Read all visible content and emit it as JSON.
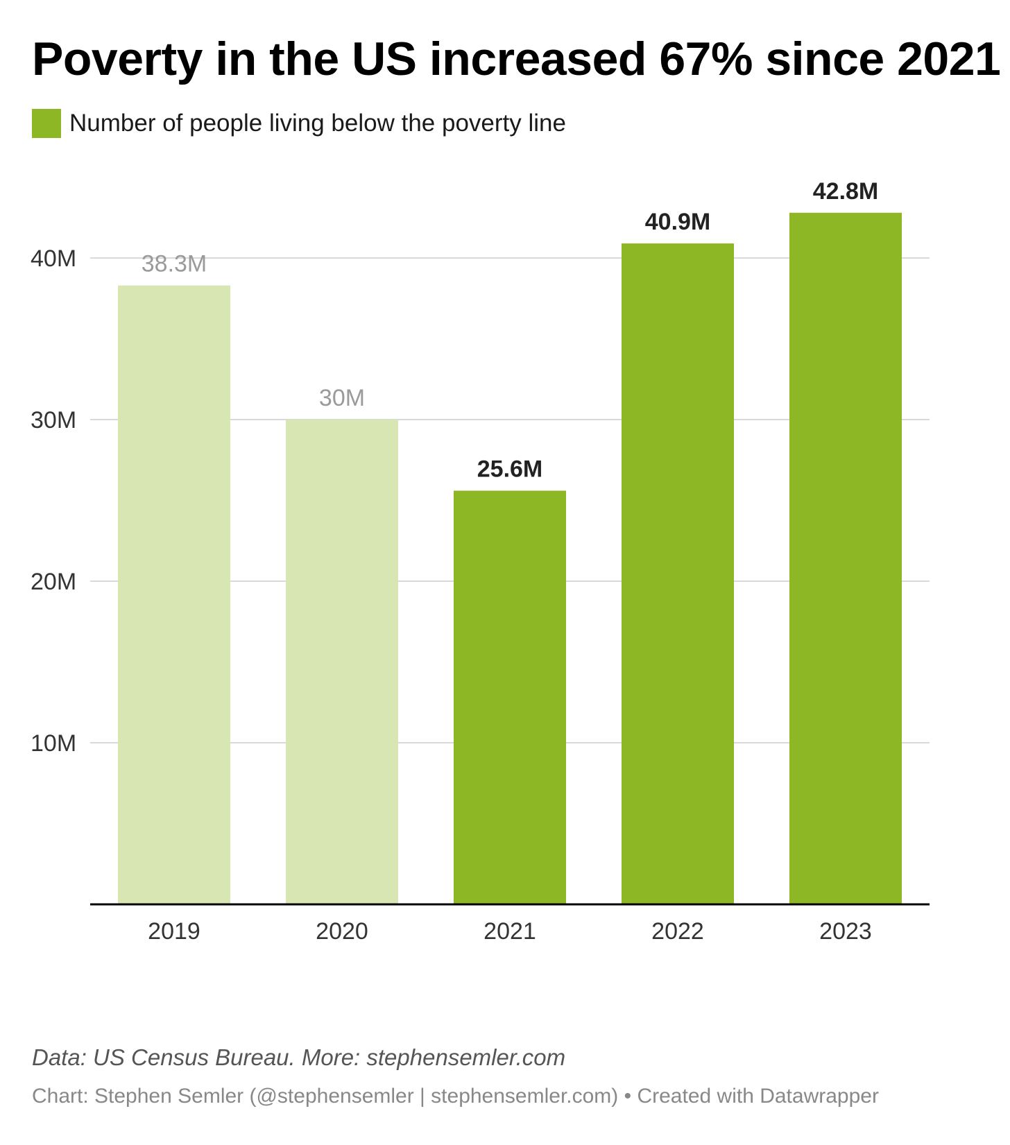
{
  "chart_data": {
    "type": "bar",
    "title": "Poverty in the US increased 67% since 2021",
    "legend": [
      "Number of people living below the poverty line"
    ],
    "legend_placement": "top-left",
    "categories": [
      "2019",
      "2020",
      "2021",
      "2022",
      "2023"
    ],
    "series": [
      {
        "name": "Number of people living below the poverty line",
        "values": [
          38.3,
          30,
          25.6,
          40.9,
          42.8
        ]
      }
    ],
    "value_labels": [
      "38.3M",
      "30M",
      "25.6M",
      "40.9M",
      "42.8M"
    ],
    "highlighted": [
      false,
      false,
      true,
      true,
      true
    ],
    "yticks": [
      10,
      20,
      30,
      40
    ],
    "ytick_labels": [
      "10M",
      "20M",
      "30M",
      "40M"
    ],
    "ylim": [
      0,
      45
    ],
    "xlabel": "",
    "ylabel": "",
    "grid": true
  },
  "colors": {
    "highlight": "#8db724",
    "muted": "#d7e6b3",
    "label_highlight": "#222222",
    "label_muted": "#9a9a9a",
    "gridline": "#d9d9d9",
    "axis": "#000000",
    "tick_label": "#333333"
  },
  "footer": {
    "source": "Data: US Census Bureau. More: stephensemler.com",
    "credit": "Chart: Stephen Semler (@stephensemler | stephensemler.com) • Created with Datawrapper"
  }
}
